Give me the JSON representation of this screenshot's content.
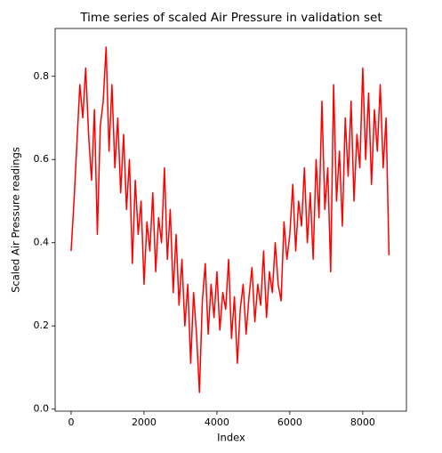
{
  "chart_data": {
    "type": "line",
    "title": "Time series of scaled Air Pressure in validation set",
    "x_label": "Index",
    "y_label": "Scaled Air Pressure readings",
    "x": [
      0,
      80,
      160,
      240,
      320,
      400,
      480,
      560,
      640,
      720,
      800,
      880,
      960,
      1040,
      1120,
      1200,
      1280,
      1360,
      1440,
      1520,
      1600,
      1680,
      1760,
      1840,
      1920,
      2000,
      2080,
      2160,
      2240,
      2320,
      2400,
      2480,
      2560,
      2640,
      2720,
      2800,
      2880,
      2960,
      3040,
      3120,
      3200,
      3280,
      3360,
      3440,
      3520,
      3600,
      3680,
      3760,
      3840,
      3920,
      4000,
      4080,
      4160,
      4240,
      4320,
      4400,
      4480,
      4560,
      4640,
      4720,
      4800,
      4880,
      4960,
      5040,
      5120,
      5200,
      5280,
      5360,
      5440,
      5520,
      5600,
      5680,
      5760,
      5840,
      5920,
      6000,
      6080,
      6160,
      6240,
      6320,
      6400,
      6480,
      6560,
      6640,
      6720,
      6800,
      6880,
      6960,
      7040,
      7120,
      7200,
      7280,
      7360,
      7440,
      7520,
      7600,
      7680,
      7760,
      7840,
      7920,
      8000,
      8080,
      8160,
      8240,
      8320,
      8400,
      8480,
      8560,
      8640,
      8720
    ],
    "series": [
      {
        "name": "Air Pressure",
        "color": "#ff0000",
        "values": [
          0.38,
          0.5,
          0.64,
          0.78,
          0.7,
          0.82,
          0.66,
          0.55,
          0.72,
          0.42,
          0.68,
          0.74,
          0.87,
          0.62,
          0.78,
          0.58,
          0.7,
          0.52,
          0.66,
          0.48,
          0.6,
          0.35,
          0.55,
          0.42,
          0.5,
          0.3,
          0.45,
          0.38,
          0.52,
          0.33,
          0.46,
          0.4,
          0.58,
          0.36,
          0.48,
          0.28,
          0.42,
          0.25,
          0.36,
          0.2,
          0.3,
          0.11,
          0.28,
          0.18,
          0.04,
          0.26,
          0.35,
          0.18,
          0.3,
          0.22,
          0.33,
          0.19,
          0.28,
          0.24,
          0.36,
          0.17,
          0.27,
          0.11,
          0.24,
          0.3,
          0.18,
          0.27,
          0.34,
          0.21,
          0.3,
          0.25,
          0.38,
          0.22,
          0.33,
          0.28,
          0.4,
          0.3,
          0.26,
          0.45,
          0.36,
          0.42,
          0.54,
          0.38,
          0.5,
          0.44,
          0.58,
          0.4,
          0.52,
          0.36,
          0.6,
          0.46,
          0.74,
          0.48,
          0.58,
          0.33,
          0.78,
          0.5,
          0.62,
          0.44,
          0.7,
          0.56,
          0.74,
          0.5,
          0.66,
          0.58,
          0.82,
          0.6,
          0.76,
          0.54,
          0.72,
          0.62,
          0.78,
          0.58,
          0.7,
          0.37
        ]
      }
    ],
    "xlim": [
      -438,
      9198
    ],
    "ylim": [
      -0.005,
      0.915
    ],
    "xticks": [
      0,
      2000,
      4000,
      6000,
      8000
    ],
    "yticks": [
      {
        "value": 0,
        "label": "0.0"
      },
      0.2,
      0.4,
      0.6,
      0.8
    ]
  }
}
